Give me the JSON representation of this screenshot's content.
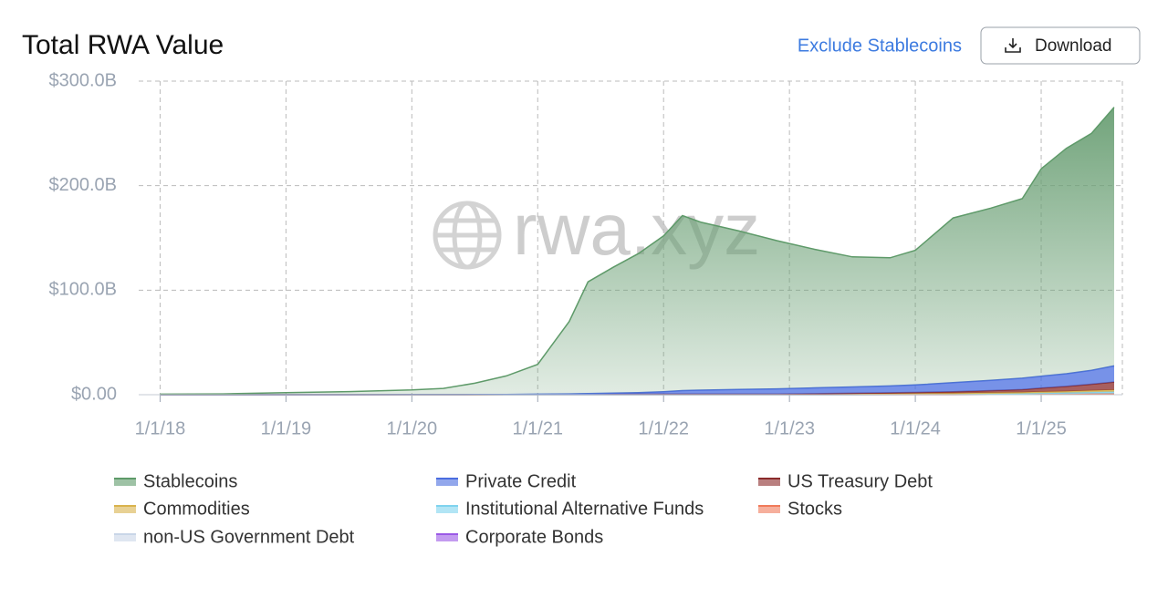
{
  "chart_data": {
    "type": "stacked_area",
    "title": "Total RWA Value",
    "link": "Exclude Stablecoins",
    "button": "Download",
    "watermark": "rwa.xyz",
    "x": [
      2018,
      2018.5,
      2019,
      2019.5,
      2020,
      2020.25,
      2020.5,
      2020.75,
      2021,
      2021.25,
      2021.4,
      2021.6,
      2021.8,
      2022,
      2022.15,
      2022.3,
      2022.6,
      2022.9,
      2023.2,
      2023.5,
      2023.8,
      2024,
      2024.3,
      2024.6,
      2024.85,
      2025,
      2025.2,
      2025.4,
      2025.58
    ],
    "xlim": [
      2017.83,
      2025.645
    ],
    "xticks": [
      {
        "value": 2018,
        "label": "1/1/18"
      },
      {
        "value": 2019,
        "label": "1/1/19"
      },
      {
        "value": 2020,
        "label": "1/1/20"
      },
      {
        "value": 2021,
        "label": "1/1/21"
      },
      {
        "value": 2022,
        "label": "1/1/22"
      },
      {
        "value": 2023,
        "label": "1/1/23"
      },
      {
        "value": 2024,
        "label": "1/1/24"
      },
      {
        "value": 2025,
        "label": "1/1/25"
      }
    ],
    "ylim": [
      0,
      300
    ],
    "yticks": [
      {
        "value": 0,
        "label": "$0.00"
      },
      {
        "value": 100,
        "label": "$100.0B"
      },
      {
        "value": 200,
        "label": "$200.0B"
      },
      {
        "value": 300,
        "label": "$300.0B"
      }
    ],
    "grid": true,
    "series": [
      {
        "name": "Stablecoins",
        "color": "#5e9a69",
        "values": [
          0.5,
          0.8,
          2,
          3,
          4.4,
          5.9,
          10.8,
          17.7,
          28.5,
          69.2,
          106.9,
          120.4,
          133,
          149,
          167.5,
          160.5,
          151.6,
          141.8,
          132.6,
          124.5,
          122.6,
          128.8,
          157.6,
          164.7,
          171.8,
          198.4,
          215.6,
          226.6,
          247.5
        ]
      },
      {
        "name": "Private Credit",
        "color": "#4a6de0",
        "values": [
          0,
          0,
          0,
          0,
          0,
          0,
          0.1,
          0.1,
          0.3,
          0.5,
          0.7,
          1,
          1.5,
          2.3,
          3.3,
          3.8,
          4.4,
          4.9,
          5.5,
          6,
          6.6,
          7.1,
          8.6,
          9.9,
          10.9,
          11.3,
          12.2,
          13.4,
          15.5
        ]
      },
      {
        "name": "US Treasury Debt",
        "color": "#8b2a2a",
        "values": [
          0,
          0,
          0,
          0,
          0,
          0,
          0,
          0,
          0,
          0,
          0,
          0,
          0,
          0,
          0,
          0,
          0,
          0.1,
          0.3,
          0.6,
          0.8,
          1,
          1.5,
          2,
          2.6,
          3.6,
          4.6,
          6,
          7.5
        ]
      },
      {
        "name": "Commodities",
        "color": "#d9b34c",
        "values": [
          0,
          0,
          0,
          0,
          0.1,
          0.1,
          0.1,
          0.2,
          0.2,
          0.3,
          0.4,
          0.5,
          0.5,
          0.6,
          0.6,
          0.6,
          0.6,
          0.6,
          0.7,
          0.8,
          0.9,
          1,
          1,
          1.1,
          1.2,
          1.3,
          1.4,
          1.5,
          1.7
        ]
      },
      {
        "name": "Institutional Alternative Funds",
        "color": "#7fd3ee",
        "values": [
          0,
          0,
          0,
          0,
          0,
          0,
          0,
          0,
          0,
          0,
          0,
          0,
          0,
          0,
          0,
          0,
          0,
          0,
          0,
          0,
          0,
          0.1,
          0.3,
          0.5,
          0.7,
          0.9,
          1.2,
          1.5,
          1.8
        ]
      },
      {
        "name": "Stocks",
        "color": "#f07a5a",
        "values": [
          0,
          0,
          0,
          0,
          0,
          0,
          0,
          0,
          0,
          0,
          0,
          0,
          0,
          0,
          0,
          0,
          0,
          0,
          0,
          0,
          0,
          0,
          0,
          0,
          0.1,
          0.2,
          0.3,
          0.4,
          0.5
        ]
      },
      {
        "name": "non-US Government Debt",
        "color": "#c9d6e8",
        "values": [
          0,
          0,
          0,
          0,
          0,
          0,
          0,
          0,
          0,
          0,
          0,
          0,
          0,
          0,
          0,
          0,
          0,
          0,
          0,
          0,
          0,
          0,
          0,
          0.1,
          0.1,
          0.2,
          0.2,
          0.3,
          0.3
        ]
      },
      {
        "name": "Corporate Bonds",
        "color": "#9b59e6",
        "values": [
          0,
          0,
          0,
          0,
          0,
          0,
          0,
          0,
          0,
          0,
          0,
          0,
          0,
          0,
          0,
          0,
          0,
          0,
          0,
          0,
          0.1,
          0.1,
          0.1,
          0.2,
          0.2,
          0.2,
          0.2,
          0.3,
          0.3
        ]
      }
    ]
  }
}
